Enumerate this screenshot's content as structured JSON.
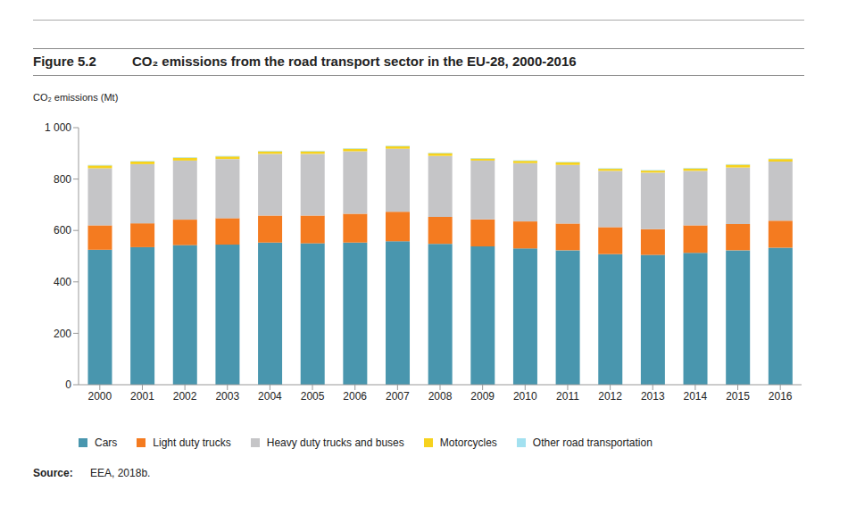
{
  "chart_data": {
    "type": "bar",
    "stacked": true,
    "grid": false,
    "figure": "Figure 5.2",
    "title": "CO₂ emissions from the road transport sector in the EU-28, 2000-2016",
    "ylabel": "CO₂ emissions (Mt)",
    "source_label": "Source:",
    "source": "EEA, 2018b.",
    "legend": "bottom",
    "categories": [
      "2000",
      "2001",
      "2002",
      "2003",
      "2004",
      "2005",
      "2006",
      "2007",
      "2008",
      "2009",
      "2010",
      "2011",
      "2012",
      "2013",
      "2014",
      "2015",
      "2016"
    ],
    "ylim": [
      0,
      1000
    ],
    "yticks": [
      0,
      200,
      400,
      600,
      800,
      {
        "value": 1000,
        "label": "1 000"
      }
    ],
    "series": [
      {
        "name": "Cars",
        "color": "#4996ae",
        "values": [
          525,
          535,
          543,
          545,
          553,
          550,
          553,
          558,
          548,
          538,
          530,
          523,
          508,
          505,
          513,
          523,
          533
        ]
      },
      {
        "name": "Light duty trucks",
        "color": "#f47b20",
        "values": [
          95,
          93,
          99,
          103,
          105,
          108,
          112,
          115,
          105,
          105,
          105,
          104,
          105,
          100,
          107,
          102,
          105
        ]
      },
      {
        "name": "Heavy duty trucks and buses",
        "color": "#c5c5c7",
        "values": [
          222,
          230,
          230,
          230,
          240,
          240,
          243,
          245,
          237,
          229,
          227,
          228,
          219,
          220,
          212,
          220,
          230
        ]
      },
      {
        "name": "Motorcycles",
        "color": "#f6d21e",
        "values": [
          11,
          10,
          11,
          10,
          10,
          10,
          10,
          10,
          11,
          8,
          9,
          10,
          8,
          8,
          9,
          11,
          10
        ]
      },
      {
        "name": "Other road transportation",
        "color": "#a3e1f0",
        "values": [
          2,
          2,
          2,
          2,
          2,
          2,
          2,
          2,
          2,
          2,
          2,
          2,
          2,
          2,
          2,
          2,
          2
        ]
      }
    ]
  }
}
